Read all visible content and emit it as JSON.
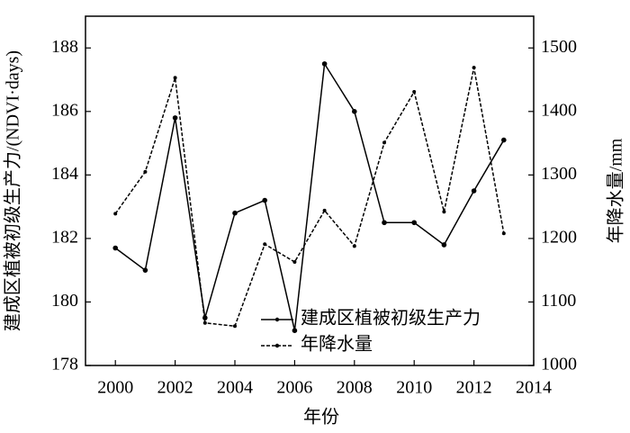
{
  "chart_data": {
    "type": "line",
    "x_label": "年份",
    "y_label": "建成区植被初级生产力/(NDVI·days)",
    "y2_label": "年降水量/mm",
    "x": [
      2000,
      2001,
      2002,
      2003,
      2004,
      2005,
      2006,
      2007,
      2008,
      2009,
      2010,
      2011,
      2012,
      2013
    ],
    "xlim": [
      1999,
      2014
    ],
    "xticks": [
      2000,
      2002,
      2004,
      2006,
      2008,
      2010,
      2012,
      2014
    ],
    "ylim": [
      178,
      189
    ],
    "yticks": [
      178,
      180,
      182,
      184,
      186,
      188
    ],
    "y2lim": [
      1000,
      1550
    ],
    "y2ticks": [
      1000,
      1100,
      1200,
      1300,
      1400,
      1500
    ],
    "legend": "lower right",
    "series": [
      {
        "name": "建成区植被初级生产力",
        "color": "#000000",
        "dash": "solid",
        "values": [
          181.7,
          181.0,
          185.8,
          179.5,
          182.8,
          183.2,
          179.1,
          187.5,
          186.0,
          182.5,
          182.5,
          181.8,
          183.5,
          185.1
        ]
      },
      {
        "name": "年降水量",
        "color": "#000000",
        "dash": "dashed",
        "axis": "y2",
        "values": [
          1239,
          1305,
          1453,
          1067,
          1062,
          1191,
          1163,
          1244,
          1188,
          1351,
          1431,
          1242,
          1469,
          1208
        ]
      }
    ]
  }
}
